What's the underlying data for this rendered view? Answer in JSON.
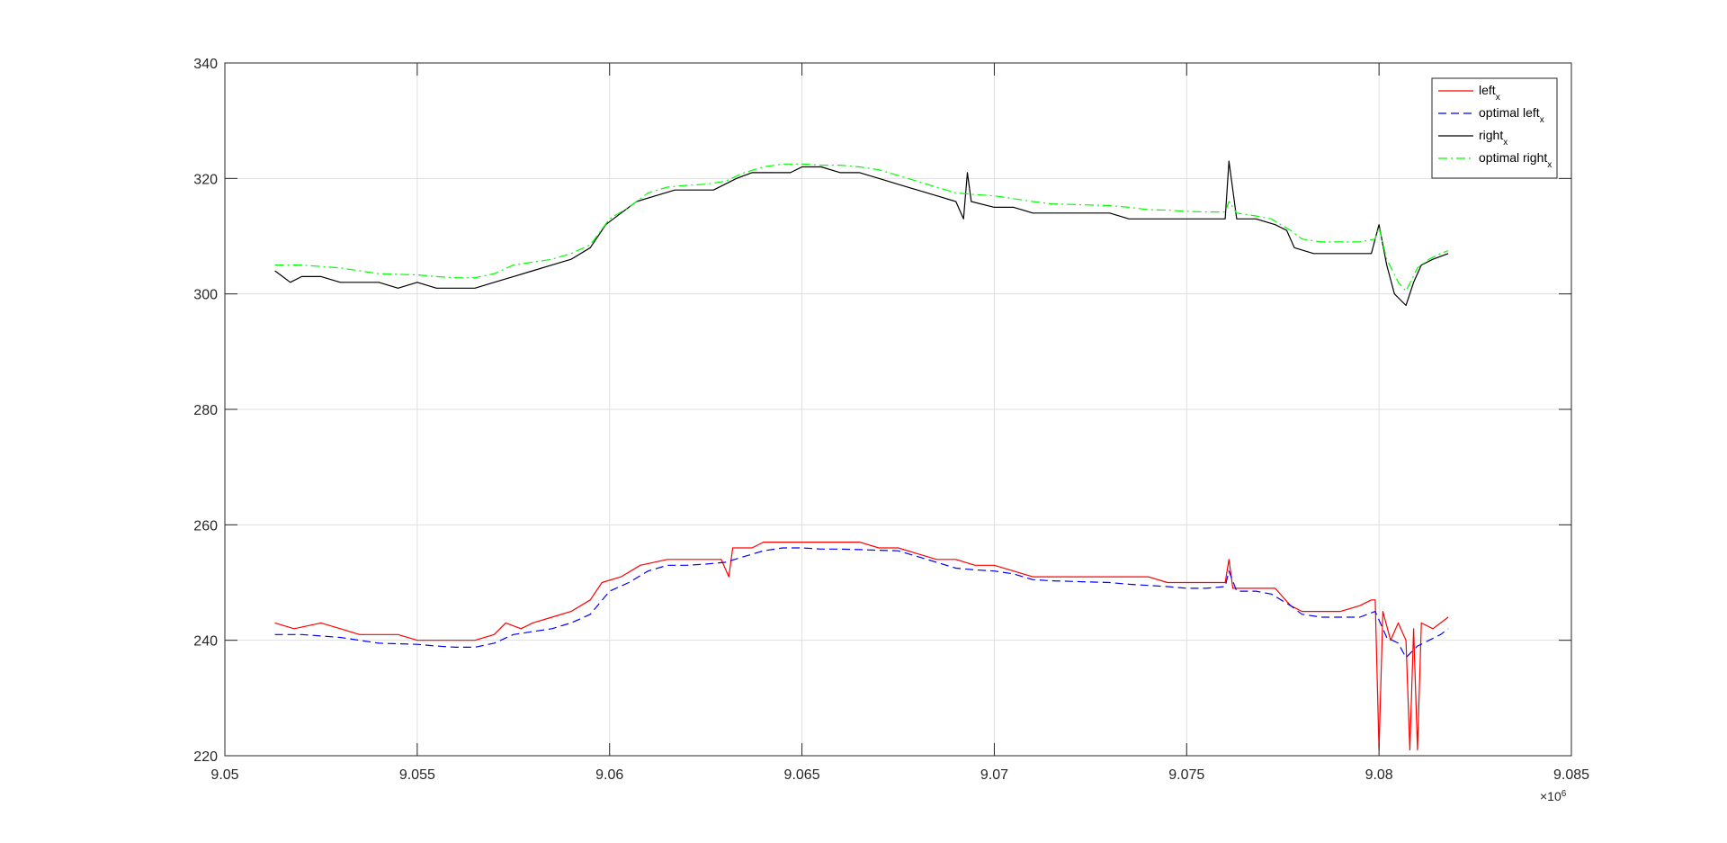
{
  "chart_data": {
    "type": "line",
    "xlim": [
      9050000,
      9085000
    ],
    "ylim": [
      220,
      340
    ],
    "x_ticks": [
      9050000,
      9055000,
      9060000,
      9065000,
      9070000,
      9075000,
      9080000,
      9085000
    ],
    "x_tick_labels": [
      "9.05",
      "9.055",
      "9.06",
      "9.065",
      "9.07",
      "9.075",
      "9.08",
      "9.085"
    ],
    "y_ticks": [
      220,
      240,
      260,
      280,
      300,
      320,
      340
    ],
    "y_tick_labels": [
      "220",
      "240",
      "260",
      "280",
      "300",
      "320",
      "340"
    ],
    "x_exponent_base": "×10",
    "x_exponent_power": "6",
    "grid": true,
    "legend_position": "top-right",
    "series": [
      {
        "name": "left",
        "name_sub": "x",
        "color": "#ff0000",
        "dash": "solid",
        "points": [
          [
            9051300,
            243
          ],
          [
            9051800,
            242
          ],
          [
            9052500,
            243
          ],
          [
            9053000,
            242
          ],
          [
            9053500,
            241
          ],
          [
            9054000,
            241
          ],
          [
            9054500,
            241
          ],
          [
            9055000,
            240
          ],
          [
            9055500,
            240
          ],
          [
            9056000,
            240
          ],
          [
            9056500,
            240
          ],
          [
            9057000,
            241
          ],
          [
            9057300,
            243
          ],
          [
            9057700,
            242
          ],
          [
            9058000,
            243
          ],
          [
            9058500,
            244
          ],
          [
            9059000,
            245
          ],
          [
            9059500,
            247
          ],
          [
            9059800,
            250
          ],
          [
            9060300,
            251
          ],
          [
            9060800,
            253
          ],
          [
            9061500,
            254
          ],
          [
            9062000,
            254
          ],
          [
            9062500,
            254
          ],
          [
            9062900,
            254
          ],
          [
            9063100,
            251
          ],
          [
            9063200,
            256
          ],
          [
            9063700,
            256
          ],
          [
            9064000,
            257
          ],
          [
            9064500,
            257
          ],
          [
            9065000,
            257
          ],
          [
            9065500,
            257
          ],
          [
            9066000,
            257
          ],
          [
            9066500,
            257
          ],
          [
            9067000,
            256
          ],
          [
            9067500,
            256
          ],
          [
            9068000,
            255
          ],
          [
            9068500,
            254
          ],
          [
            9069000,
            254
          ],
          [
            9069500,
            253
          ],
          [
            9070000,
            253
          ],
          [
            9070500,
            252
          ],
          [
            9071000,
            251
          ],
          [
            9071500,
            251
          ],
          [
            9072000,
            251
          ],
          [
            9072500,
            251
          ],
          [
            9073000,
            251
          ],
          [
            9073500,
            251
          ],
          [
            9074000,
            251
          ],
          [
            9074500,
            250
          ],
          [
            9075000,
            250
          ],
          [
            9075500,
            250
          ],
          [
            9076000,
            250
          ],
          [
            9076100,
            254
          ],
          [
            9076200,
            249
          ],
          [
            9076800,
            249
          ],
          [
            9077300,
            249
          ],
          [
            9077700,
            246
          ],
          [
            9078000,
            245
          ],
          [
            9078500,
            245
          ],
          [
            9079000,
            245
          ],
          [
            9079500,
            246
          ],
          [
            9079800,
            247
          ],
          [
            9079900,
            247
          ],
          [
            9080000,
            221
          ],
          [
            9080100,
            245
          ],
          [
            9080300,
            240
          ],
          [
            9080500,
            243
          ],
          [
            9080700,
            240
          ],
          [
            9080800,
            221
          ],
          [
            9080900,
            242
          ],
          [
            9081000,
            221
          ],
          [
            9081100,
            243
          ],
          [
            9081400,
            242
          ],
          [
            9081600,
            243
          ],
          [
            9081800,
            244
          ]
        ]
      },
      {
        "name": "optimal left",
        "name_sub": "x",
        "color": "#0000ff",
        "dash": "dashed",
        "points": [
          [
            9051300,
            241
          ],
          [
            9052000,
            241
          ],
          [
            9053000,
            240.5
          ],
          [
            9054000,
            239.5
          ],
          [
            9055000,
            239.3
          ],
          [
            9055500,
            239
          ],
          [
            9056000,
            238.8
          ],
          [
            9056500,
            238.8
          ],
          [
            9057000,
            239.5
          ],
          [
            9057500,
            241
          ],
          [
            9058000,
            241.5
          ],
          [
            9058500,
            242
          ],
          [
            9059000,
            243
          ],
          [
            9059500,
            244.5
          ],
          [
            9060000,
            248.5
          ],
          [
            9060500,
            250
          ],
          [
            9061000,
            252
          ],
          [
            9061500,
            253
          ],
          [
            9062000,
            253
          ],
          [
            9062500,
            253.2
          ],
          [
            9063000,
            253.5
          ],
          [
            9063500,
            254.5
          ],
          [
            9064000,
            255.5
          ],
          [
            9064500,
            256
          ],
          [
            9065000,
            256
          ],
          [
            9065500,
            255.8
          ],
          [
            9066000,
            255.8
          ],
          [
            9066500,
            255.7
          ],
          [
            9067000,
            255.6
          ],
          [
            9067500,
            255.5
          ],
          [
            9068000,
            254.5
          ],
          [
            9068500,
            253.5
          ],
          [
            9069000,
            252.5
          ],
          [
            9069500,
            252.2
          ],
          [
            9070000,
            252
          ],
          [
            9070500,
            251.5
          ],
          [
            9071000,
            250.5
          ],
          [
            9071500,
            250.3
          ],
          [
            9072000,
            250.2
          ],
          [
            9072500,
            250.1
          ],
          [
            9073000,
            250
          ],
          [
            9073500,
            249.7
          ],
          [
            9074000,
            249.5
          ],
          [
            9074500,
            249.3
          ],
          [
            9075000,
            249
          ],
          [
            9075500,
            249
          ],
          [
            9076000,
            249.3
          ],
          [
            9076100,
            252
          ],
          [
            9076300,
            248.5
          ],
          [
            9076800,
            248.5
          ],
          [
            9077200,
            248
          ],
          [
            9077700,
            246
          ],
          [
            9078000,
            244.5
          ],
          [
            9078500,
            244
          ],
          [
            9079000,
            244
          ],
          [
            9079500,
            244
          ],
          [
            9079900,
            245
          ],
          [
            9080200,
            240.5
          ],
          [
            9080500,
            239.5
          ],
          [
            9080700,
            237
          ],
          [
            9081000,
            239
          ],
          [
            9081300,
            240
          ],
          [
            9081600,
            241
          ],
          [
            9081800,
            242
          ]
        ]
      },
      {
        "name": "right",
        "name_sub": "x",
        "color": "#000000",
        "dash": "solid",
        "points": [
          [
            9051300,
            304
          ],
          [
            9051500,
            303
          ],
          [
            9051700,
            302
          ],
          [
            9052000,
            303
          ],
          [
            9052500,
            303
          ],
          [
            9053000,
            302
          ],
          [
            9053500,
            302
          ],
          [
            9054000,
            302
          ],
          [
            9054500,
            301
          ],
          [
            9055000,
            302
          ],
          [
            9055500,
            301
          ],
          [
            9056000,
            301
          ],
          [
            9056500,
            301
          ],
          [
            9057000,
            302
          ],
          [
            9057500,
            303
          ],
          [
            9058000,
            304
          ],
          [
            9058500,
            305
          ],
          [
            9059000,
            306
          ],
          [
            9059500,
            308
          ],
          [
            9059900,
            312
          ],
          [
            9060300,
            314
          ],
          [
            9060700,
            316
          ],
          [
            9061200,
            317
          ],
          [
            9061700,
            318
          ],
          [
            9062200,
            318
          ],
          [
            9062700,
            318
          ],
          [
            9063000,
            319
          ],
          [
            9063300,
            320
          ],
          [
            9063700,
            321
          ],
          [
            9064200,
            321
          ],
          [
            9064700,
            321
          ],
          [
            9065000,
            322
          ],
          [
            9065500,
            322
          ],
          [
            9066000,
            321
          ],
          [
            9066500,
            321
          ],
          [
            9067000,
            320
          ],
          [
            9067500,
            319
          ],
          [
            9068000,
            318
          ],
          [
            9068500,
            317
          ],
          [
            9069000,
            316
          ],
          [
            9069200,
            313
          ],
          [
            9069300,
            321
          ],
          [
            9069400,
            316
          ],
          [
            9070000,
            315
          ],
          [
            9070500,
            315
          ],
          [
            9071000,
            314
          ],
          [
            9071500,
            314
          ],
          [
            9072000,
            314
          ],
          [
            9072500,
            314
          ],
          [
            9073000,
            314
          ],
          [
            9073500,
            313
          ],
          [
            9074000,
            313
          ],
          [
            9074500,
            313
          ],
          [
            9075000,
            313
          ],
          [
            9075500,
            313
          ],
          [
            9076000,
            313
          ],
          [
            9076100,
            323
          ],
          [
            9076300,
            313
          ],
          [
            9076800,
            313
          ],
          [
            9077300,
            312
          ],
          [
            9077600,
            311
          ],
          [
            9077800,
            308
          ],
          [
            9078300,
            307
          ],
          [
            9078800,
            307
          ],
          [
            9079300,
            307
          ],
          [
            9079800,
            307
          ],
          [
            9080000,
            312
          ],
          [
            9080200,
            305
          ],
          [
            9080400,
            300
          ],
          [
            9080700,
            298
          ],
          [
            9080900,
            302
          ],
          [
            9081100,
            305
          ],
          [
            9081400,
            306
          ],
          [
            9081800,
            307
          ]
        ]
      },
      {
        "name": "optimal right",
        "name_sub": "x",
        "color": "#00ff00",
        "dash": "dashdot",
        "points": [
          [
            9051300,
            305
          ],
          [
            9052000,
            305
          ],
          [
            9053000,
            304.5
          ],
          [
            9054000,
            303.5
          ],
          [
            9055000,
            303.3
          ],
          [
            9055500,
            303
          ],
          [
            9056000,
            302.8
          ],
          [
            9056500,
            302.8
          ],
          [
            9057000,
            303.5
          ],
          [
            9057500,
            305
          ],
          [
            9058000,
            305.5
          ],
          [
            9058500,
            306
          ],
          [
            9059000,
            307
          ],
          [
            9059500,
            308.5
          ],
          [
            9060000,
            313
          ],
          [
            9060500,
            315
          ],
          [
            9061000,
            317.5
          ],
          [
            9061500,
            318.5
          ],
          [
            9062000,
            318.8
          ],
          [
            9062500,
            319
          ],
          [
            9063000,
            319.5
          ],
          [
            9063500,
            321
          ],
          [
            9064000,
            322
          ],
          [
            9064500,
            322.5
          ],
          [
            9065000,
            322.5
          ],
          [
            9065500,
            322.3
          ],
          [
            9066000,
            322.3
          ],
          [
            9066500,
            322
          ],
          [
            9067000,
            321.5
          ],
          [
            9067500,
            320.5
          ],
          [
            9068000,
            319.5
          ],
          [
            9068500,
            318.5
          ],
          [
            9069000,
            317.5
          ],
          [
            9069500,
            317.2
          ],
          [
            9070000,
            317
          ],
          [
            9070500,
            316.5
          ],
          [
            9071000,
            316
          ],
          [
            9071500,
            315.6
          ],
          [
            9072000,
            315.5
          ],
          [
            9072500,
            315.4
          ],
          [
            9073000,
            315.3
          ],
          [
            9073500,
            315
          ],
          [
            9074000,
            314.6
          ],
          [
            9074500,
            314.5
          ],
          [
            9075000,
            314.3
          ],
          [
            9075500,
            314.2
          ],
          [
            9076000,
            314.2
          ],
          [
            9076100,
            316
          ],
          [
            9076300,
            314
          ],
          [
            9076800,
            313.5
          ],
          [
            9077200,
            313
          ],
          [
            9077700,
            311
          ],
          [
            9078000,
            309.5
          ],
          [
            9078500,
            309
          ],
          [
            9079000,
            309
          ],
          [
            9079500,
            309
          ],
          [
            9079900,
            309.5
          ],
          [
            9080000,
            311.5
          ],
          [
            9080200,
            306
          ],
          [
            9080500,
            302
          ],
          [
            9080700,
            300.5
          ],
          [
            9081000,
            304.5
          ],
          [
            9081300,
            306
          ],
          [
            9081600,
            307
          ],
          [
            9081800,
            307.5
          ]
        ]
      }
    ]
  }
}
